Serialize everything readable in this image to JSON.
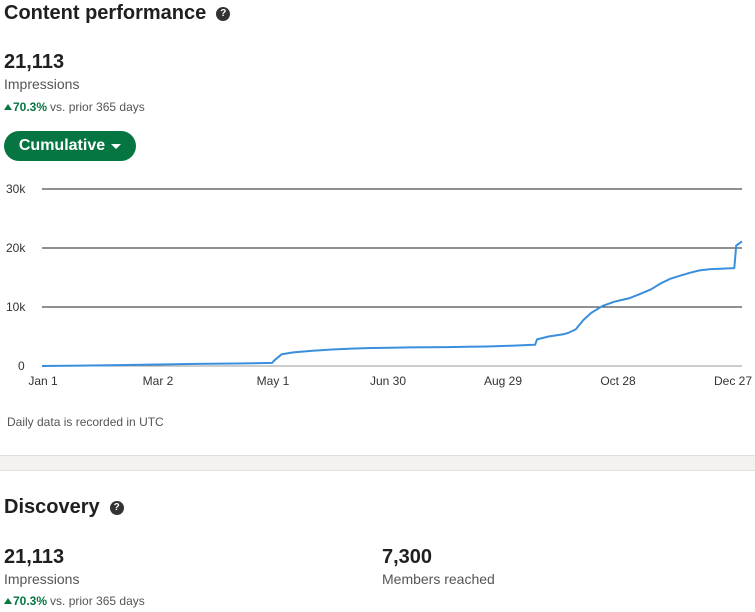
{
  "content_performance": {
    "title": "Content performance",
    "impressions_value": "21,113",
    "impressions_label": "Impressions",
    "delta_pct": "70.3%",
    "delta_text": "vs. prior 365 days",
    "view_toggle": "Cumulative",
    "note": "Daily data is recorded in UTC"
  },
  "discovery": {
    "title": "Discovery",
    "impressions_value": "21,113",
    "impressions_label": "Impressions",
    "delta_pct": "70.3%",
    "delta_text": "vs. prior 365 days",
    "members_value": "7,300",
    "members_label": "Members reached"
  },
  "colors": {
    "accent": "#057642",
    "line": "#3a8fdc"
  },
  "chart_data": {
    "type": "line",
    "y_ticks": [
      "0",
      "10k",
      "20k",
      "30k"
    ],
    "x_ticks": [
      "Jan 1",
      "Mar 2",
      "May 1",
      "Jun 30",
      "Aug 29",
      "Oct 28",
      "Dec 27"
    ],
    "ylim": [
      0,
      30000
    ],
    "grid": true,
    "series": [
      {
        "x": [
          0,
          20,
          40,
          60,
          80,
          100,
          110,
          119,
          120,
          124,
          130,
          140,
          150,
          160,
          170,
          180,
          190,
          200,
          210,
          220,
          230,
          240,
          250,
          255,
          256,
          262,
          270,
          272,
          276,
          280,
          284,
          290,
          296,
          300,
          304,
          310,
          315,
          320,
          325,
          330,
          335,
          340,
          343,
          345,
          352,
          358,
          359,
          362
        ],
        "y": [
          0,
          60,
          150,
          250,
          360,
          420,
          460,
          520,
          900,
          2000,
          2300,
          2600,
          2800,
          2950,
          3050,
          3100,
          3150,
          3180,
          3200,
          3250,
          3300,
          3400,
          3550,
          3600,
          4500,
          5000,
          5400,
          5600,
          6200,
          7800,
          9000,
          10200,
          10900,
          11200,
          11500,
          12300,
          13000,
          14000,
          14800,
          15300,
          15800,
          16200,
          16300,
          16400,
          16500,
          16600,
          20400,
          21113
        ]
      }
    ]
  }
}
